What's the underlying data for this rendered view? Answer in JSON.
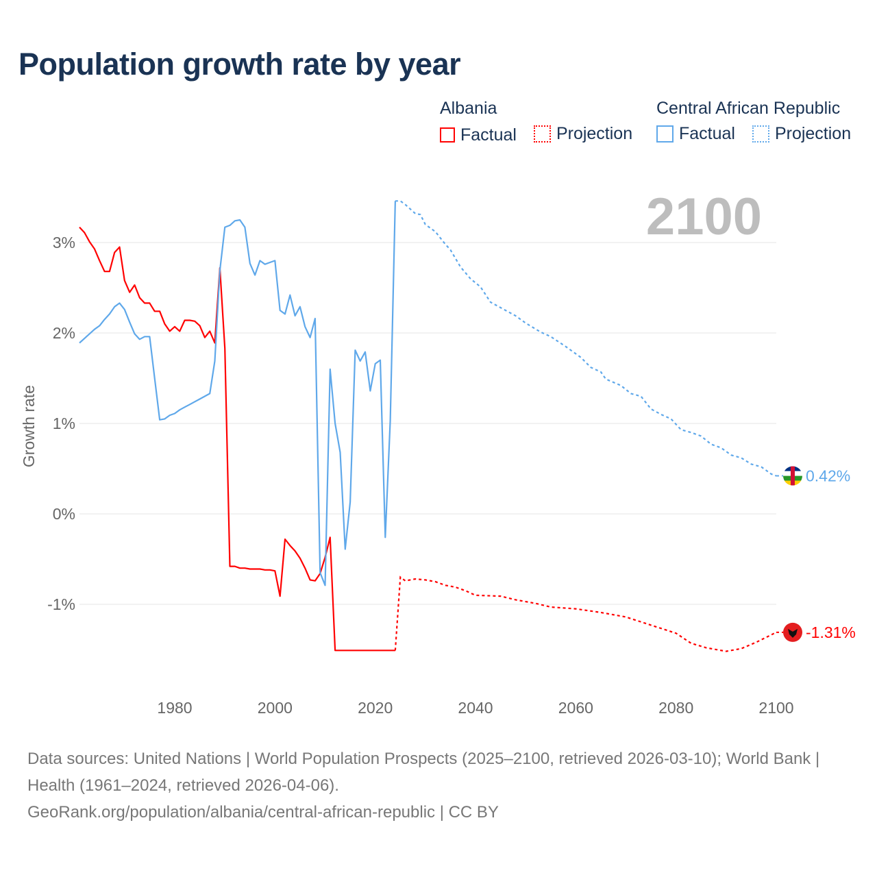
{
  "title": "Population growth rate by year",
  "legend": [
    {
      "group": "Albania",
      "factual": "Factual",
      "projection": "Projection",
      "color": "#ff0000"
    },
    {
      "group": "Central African Republic",
      "factual": "Factual",
      "projection": "Projection",
      "color": "#5fa8ea"
    }
  ],
  "year_watermark": "2100",
  "footer": {
    "sources": "Data sources: United Nations | World Population Prospects (2025–2100, retrieved 2026-03-10); World Bank | Health (1961–2024, retrieved 2026-04-06).",
    "credit": "GeoRank.org/population/albania/central-african-republic | CC BY"
  },
  "chart_data": {
    "type": "line",
    "title": "Population growth rate by year",
    "xlabel": "",
    "ylabel": "Growth rate",
    "xlim": [
      1961,
      2100
    ],
    "ylim": [
      -1.9,
      3.6
    ],
    "x_ticks": [
      1980,
      2000,
      2020,
      2040,
      2060,
      2080,
      2100
    ],
    "y_ticks": [
      {
        "v": 3,
        "label": "3%"
      },
      {
        "v": 2,
        "label": "2%"
      },
      {
        "v": 1,
        "label": "1%"
      },
      {
        "v": 0,
        "label": "0%"
      },
      {
        "v": -1,
        "label": "-1%"
      }
    ],
    "grid": true,
    "series": [
      {
        "name": "Albania",
        "color": "#ff0000",
        "end_label": "-1.31%",
        "factual": [
          [
            1961,
            3.17
          ],
          [
            1962,
            3.11
          ],
          [
            1963,
            3.01
          ],
          [
            1964,
            2.93
          ],
          [
            1965,
            2.8
          ],
          [
            1966,
            2.68
          ],
          [
            1967,
            2.68
          ],
          [
            1968,
            2.89
          ],
          [
            1969,
            2.95
          ],
          [
            1970,
            2.58
          ],
          [
            1971,
            2.45
          ],
          [
            1972,
            2.53
          ],
          [
            1973,
            2.39
          ],
          [
            1974,
            2.33
          ],
          [
            1975,
            2.33
          ],
          [
            1976,
            2.24
          ],
          [
            1977,
            2.24
          ],
          [
            1978,
            2.1
          ],
          [
            1979,
            2.02
          ],
          [
            1980,
            2.07
          ],
          [
            1981,
            2.02
          ],
          [
            1982,
            2.14
          ],
          [
            1983,
            2.14
          ],
          [
            1984,
            2.13
          ],
          [
            1985,
            2.08
          ],
          [
            1986,
            1.95
          ],
          [
            1987,
            2.02
          ],
          [
            1988,
            1.89
          ],
          [
            1989,
            2.72
          ],
          [
            1990,
            1.83
          ],
          [
            1991,
            -0.58
          ],
          [
            1992,
            -0.58
          ],
          [
            1993,
            -0.6
          ],
          [
            1994,
            -0.6
          ],
          [
            1995,
            -0.61
          ],
          [
            1996,
            -0.61
          ],
          [
            1997,
            -0.61
          ],
          [
            1998,
            -0.62
          ],
          [
            1999,
            -0.62
          ],
          [
            2000,
            -0.63
          ],
          [
            2001,
            -0.91
          ],
          [
            2002,
            -0.28
          ],
          [
            2003,
            -0.35
          ],
          [
            2004,
            -0.41
          ],
          [
            2005,
            -0.49
          ],
          [
            2006,
            -0.6
          ],
          [
            2007,
            -0.73
          ],
          [
            2008,
            -0.74
          ],
          [
            2009,
            -0.66
          ],
          [
            2010,
            -0.48
          ],
          [
            2011,
            -0.26
          ],
          [
            2012,
            -1.51
          ],
          [
            2013,
            -1.51
          ],
          [
            2014,
            -1.51
          ],
          [
            2015,
            -1.51
          ],
          [
            2016,
            -1.51
          ],
          [
            2017,
            -1.51
          ],
          [
            2018,
            -1.51
          ],
          [
            2019,
            -1.51
          ],
          [
            2020,
            -1.51
          ],
          [
            2021,
            -1.51
          ],
          [
            2022,
            -1.51
          ],
          [
            2023,
            -1.51
          ],
          [
            2024,
            -1.51
          ]
        ],
        "projection": [
          [
            2024,
            -1.51
          ],
          [
            2025,
            -0.7
          ],
          [
            2026,
            -0.74
          ],
          [
            2028,
            -0.72
          ],
          [
            2030,
            -0.73
          ],
          [
            2032,
            -0.75
          ],
          [
            2034,
            -0.79
          ],
          [
            2036,
            -0.81
          ],
          [
            2038,
            -0.85
          ],
          [
            2040,
            -0.9
          ],
          [
            2045,
            -0.91
          ],
          [
            2048,
            -0.95
          ],
          [
            2052,
            -0.99
          ],
          [
            2055,
            -1.03
          ],
          [
            2060,
            -1.05
          ],
          [
            2065,
            -1.09
          ],
          [
            2070,
            -1.14
          ],
          [
            2075,
            -1.23
          ],
          [
            2080,
            -1.32
          ],
          [
            2083,
            -1.43
          ],
          [
            2086,
            -1.48
          ],
          [
            2090,
            -1.52
          ],
          [
            2093,
            -1.49
          ],
          [
            2096,
            -1.42
          ],
          [
            2100,
            -1.31
          ]
        ]
      },
      {
        "name": "Central African Republic",
        "color": "#5fa8ea",
        "end_label": "0.42%",
        "factual": [
          [
            1961,
            1.89
          ],
          [
            1962,
            1.94
          ],
          [
            1963,
            1.99
          ],
          [
            1964,
            2.04
          ],
          [
            1965,
            2.08
          ],
          [
            1966,
            2.15
          ],
          [
            1967,
            2.21
          ],
          [
            1968,
            2.29
          ],
          [
            1969,
            2.33
          ],
          [
            1970,
            2.26
          ],
          [
            1971,
            2.12
          ],
          [
            1972,
            1.99
          ],
          [
            1973,
            1.93
          ],
          [
            1974,
            1.96
          ],
          [
            1975,
            1.96
          ],
          [
            1976,
            1.5
          ],
          [
            1977,
            1.04
          ],
          [
            1978,
            1.05
          ],
          [
            1979,
            1.09
          ],
          [
            1980,
            1.11
          ],
          [
            1981,
            1.15
          ],
          [
            1982,
            1.18
          ],
          [
            1983,
            1.21
          ],
          [
            1984,
            1.24
          ],
          [
            1985,
            1.27
          ],
          [
            1986,
            1.3
          ],
          [
            1987,
            1.33
          ],
          [
            1988,
            1.69
          ],
          [
            1989,
            2.69
          ],
          [
            1990,
            3.17
          ],
          [
            1991,
            3.19
          ],
          [
            1992,
            3.24
          ],
          [
            1993,
            3.25
          ],
          [
            1994,
            3.17
          ],
          [
            1995,
            2.77
          ],
          [
            1996,
            2.64
          ],
          [
            1997,
            2.8
          ],
          [
            1998,
            2.76
          ],
          [
            1999,
            2.78
          ],
          [
            2000,
            2.8
          ],
          [
            2001,
            2.25
          ],
          [
            2002,
            2.21
          ],
          [
            2003,
            2.42
          ],
          [
            2004,
            2.19
          ],
          [
            2005,
            2.29
          ],
          [
            2006,
            2.07
          ],
          [
            2007,
            1.95
          ],
          [
            2008,
            2.16
          ],
          [
            2009,
            -0.65
          ],
          [
            2010,
            -0.79
          ],
          [
            2011,
            1.6
          ],
          [
            2012,
            1.0
          ],
          [
            2013,
            0.68
          ],
          [
            2014,
            -0.39
          ],
          [
            2015,
            0.13
          ],
          [
            2016,
            1.81
          ],
          [
            2017,
            1.69
          ],
          [
            2018,
            1.79
          ],
          [
            2019,
            1.36
          ],
          [
            2020,
            1.66
          ],
          [
            2021,
            1.7
          ],
          [
            2022,
            -0.26
          ],
          [
            2023,
            1.03
          ],
          [
            2024,
            3.46
          ]
        ],
        "projection": [
          [
            2024,
            3.46
          ],
          [
            2025,
            3.46
          ],
          [
            2026,
            3.42
          ],
          [
            2028,
            3.32
          ],
          [
            2029,
            3.31
          ],
          [
            2030,
            3.2
          ],
          [
            2032,
            3.12
          ],
          [
            2034,
            2.98
          ],
          [
            2035,
            2.92
          ],
          [
            2037,
            2.73
          ],
          [
            2039,
            2.6
          ],
          [
            2041,
            2.51
          ],
          [
            2043,
            2.34
          ],
          [
            2045,
            2.28
          ],
          [
            2048,
            2.19
          ],
          [
            2050,
            2.11
          ],
          [
            2053,
            2.01
          ],
          [
            2055,
            1.96
          ],
          [
            2058,
            1.85
          ],
          [
            2061,
            1.73
          ],
          [
            2063,
            1.62
          ],
          [
            2065,
            1.57
          ],
          [
            2066,
            1.49
          ],
          [
            2069,
            1.42
          ],
          [
            2071,
            1.33
          ],
          [
            2073,
            1.3
          ],
          [
            2075,
            1.16
          ],
          [
            2077,
            1.1
          ],
          [
            2079,
            1.05
          ],
          [
            2081,
            0.93
          ],
          [
            2083,
            0.9
          ],
          [
            2085,
            0.86
          ],
          [
            2087,
            0.77
          ],
          [
            2089,
            0.73
          ],
          [
            2091,
            0.65
          ],
          [
            2093,
            0.62
          ],
          [
            2095,
            0.55
          ],
          [
            2097,
            0.52
          ],
          [
            2099,
            0.44
          ],
          [
            2100,
            0.42
          ]
        ]
      }
    ]
  }
}
